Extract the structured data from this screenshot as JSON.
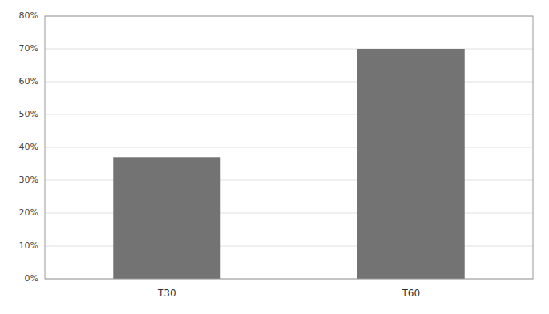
{
  "chart_data": {
    "type": "bar",
    "categories": [
      "T30",
      "T60"
    ],
    "values": [
      0.37,
      0.7
    ],
    "color": "#737373",
    "ylim": [
      0,
      0.8
    ],
    "yticks": [
      {
        "value": 0.0,
        "label": "0%"
      },
      {
        "value": 0.1,
        "label": "10%"
      },
      {
        "value": 0.2,
        "label": "20%"
      },
      {
        "value": 0.3,
        "label": "30%"
      },
      {
        "value": 0.4,
        "label": "40%"
      },
      {
        "value": 0.5,
        "label": "50%"
      },
      {
        "value": 0.6,
        "label": "60%"
      },
      {
        "value": 0.7,
        "label": "70%"
      },
      {
        "value": 0.8,
        "label": "80%"
      }
    ],
    "grid": true
  }
}
